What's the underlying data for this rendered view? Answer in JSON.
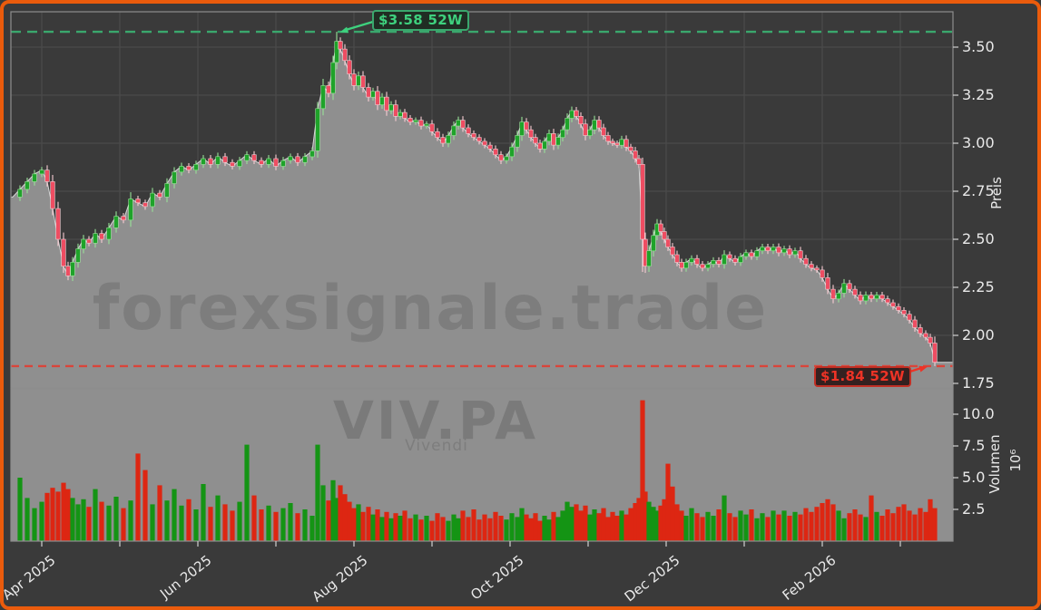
{
  "chart_data": {
    "type": "candlestick",
    "symbol": "VIV.PA",
    "company": "Vivendi",
    "watermark": "forexsignale.trade",
    "price_axis": {
      "label": "Preis",
      "ticks": [
        "1.75",
        "2.00",
        "2.25",
        "2.50",
        "2.75",
        "3.00",
        "3.25",
        "3.50"
      ]
    },
    "volume_axis": {
      "label": "Volumen",
      "scale": "10⁶",
      "ticks": [
        "2.5",
        "5.0",
        "7.5",
        "10.0"
      ]
    },
    "x_axis": {
      "labels": [
        "Apr 2025",
        "Jun 2025",
        "Aug 2025",
        "Oct 2025",
        "Dec 2025",
        "Feb 2026"
      ],
      "month_tick_count": 12,
      "labeled_every": 2
    },
    "annotations": {
      "high": {
        "label": "$3.58 52W",
        "value": 3.58
      },
      "low": {
        "label": "$1.84 52W",
        "value": 1.84
      }
    },
    "series": {
      "note": "candles = [x_px, close_eur, volume_millions, low_override?, high_override?]; open = previous close",
      "candles": [
        [
          14,
          2.72,
          2.9
        ],
        [
          22,
          2.76,
          5.0
        ],
        [
          30,
          2.8,
          3.4
        ],
        [
          38,
          2.84,
          2.6
        ],
        [
          46,
          2.86,
          3.1
        ],
        [
          52,
          2.8,
          3.8
        ],
        [
          58,
          2.66,
          4.2
        ],
        [
          64,
          2.5,
          3.9
        ],
        [
          70,
          2.36,
          4.6
        ],
        [
          75,
          2.31,
          4.1
        ],
        [
          80,
          2.38,
          3.4
        ],
        [
          86,
          2.45,
          2.9
        ],
        [
          92,
          2.5,
          3.3
        ],
        [
          98,
          2.48,
          2.7
        ],
        [
          105,
          2.53,
          4.1
        ],
        [
          112,
          2.5,
          3.1
        ],
        [
          120,
          2.56,
          2.8
        ],
        [
          128,
          2.62,
          3.5
        ],
        [
          136,
          2.6,
          2.6
        ],
        [
          144,
          2.71,
          3.2
        ],
        [
          152,
          2.69,
          6.9
        ],
        [
          160,
          2.67,
          5.6
        ],
        [
          168,
          2.74,
          2.9
        ],
        [
          176,
          2.72,
          4.4
        ],
        [
          184,
          2.79,
          3.2
        ],
        [
          192,
          2.85,
          4.1
        ],
        [
          200,
          2.88,
          2.8
        ],
        [
          208,
          2.86,
          3.3
        ],
        [
          216,
          2.89,
          2.5
        ],
        [
          224,
          2.92,
          4.5
        ],
        [
          232,
          2.89,
          2.7
        ],
        [
          240,
          2.93,
          3.6
        ],
        [
          248,
          2.9,
          2.9
        ],
        [
          256,
          2.88,
          2.4
        ],
        [
          264,
          2.91,
          3.1
        ],
        [
          272,
          2.94,
          7.6
        ],
        [
          280,
          2.91,
          3.6
        ],
        [
          288,
          2.89,
          2.5
        ],
        [
          296,
          2.92,
          2.8
        ],
        [
          304,
          2.88,
          2.3
        ],
        [
          312,
          2.91,
          2.6
        ],
        [
          320,
          2.93,
          3.0
        ],
        [
          328,
          2.9,
          2.2
        ],
        [
          336,
          2.93,
          2.5
        ],
        [
          344,
          2.96,
          2.0
        ],
        [
          350,
          3.18,
          7.6
        ],
        [
          356,
          3.3,
          4.4
        ],
        [
          362,
          3.26,
          3.2
        ],
        [
          367,
          3.42,
          4.8
        ],
        [
          371,
          3.53,
          3.4,
          null,
          3.58
        ],
        [
          375,
          3.49,
          4.4
        ],
        [
          380,
          3.43,
          3.7
        ],
        [
          385,
          3.36,
          3.1
        ],
        [
          390,
          3.3,
          2.6
        ],
        [
          395,
          3.35,
          2.9
        ],
        [
          400,
          3.29,
          2.3
        ],
        [
          406,
          3.24,
          2.7
        ],
        [
          411,
          3.27,
          2.1
        ],
        [
          416,
          3.2,
          2.5
        ],
        [
          421,
          3.24,
          1.9
        ],
        [
          426,
          3.17,
          2.3
        ],
        [
          431,
          3.2,
          1.8
        ],
        [
          436,
          3.14,
          2.2
        ],
        [
          441,
          3.16,
          2.0
        ],
        [
          446,
          3.13,
          2.4
        ],
        [
          452,
          3.11,
          1.8
        ],
        [
          458,
          3.12,
          2.1
        ],
        [
          464,
          3.09,
          1.7
        ],
        [
          470,
          3.1,
          2.0
        ],
        [
          476,
          3.06,
          1.6
        ],
        [
          482,
          3.03,
          2.2
        ],
        [
          488,
          3.0,
          1.9
        ],
        [
          494,
          3.04,
          1.6
        ],
        [
          500,
          3.09,
          2.1
        ],
        [
          505,
          3.12,
          1.8
        ],
        [
          510,
          3.08,
          2.4
        ],
        [
          516,
          3.05,
          1.9
        ],
        [
          522,
          3.03,
          2.5
        ],
        [
          528,
          3.01,
          1.7
        ],
        [
          534,
          2.99,
          2.1
        ],
        [
          540,
          2.97,
          1.8
        ],
        [
          546,
          2.94,
          2.3
        ],
        [
          552,
          2.91,
          2.0
        ],
        [
          558,
          2.93,
          1.7
        ],
        [
          564,
          2.98,
          2.2
        ],
        [
          570,
          3.04,
          1.9
        ],
        [
          575,
          3.11,
          2.6
        ],
        [
          580,
          3.07,
          2.1
        ],
        [
          585,
          3.03,
          1.8
        ],
        [
          590,
          3.0,
          2.2
        ],
        [
          595,
          2.97,
          1.6
        ],
        [
          600,
          3.01,
          2.0
        ],
        [
          605,
          3.05,
          1.7
        ],
        [
          610,
          2.99,
          2.3
        ],
        [
          615,
          3.03,
          1.9
        ],
        [
          620,
          3.07,
          2.4
        ],
        [
          625,
          3.13,
          3.1
        ],
        [
          630,
          3.17,
          2.7
        ],
        [
          635,
          3.14,
          2.9
        ],
        [
          640,
          3.1,
          2.4
        ],
        [
          645,
          3.04,
          2.8
        ],
        [
          650,
          3.07,
          2.1
        ],
        [
          655,
          3.12,
          2.5
        ],
        [
          660,
          3.08,
          2.2
        ],
        [
          665,
          3.04,
          2.6
        ],
        [
          670,
          3.01,
          1.9
        ],
        [
          675,
          3.0,
          2.3
        ],
        [
          680,
          2.99,
          2.0
        ],
        [
          685,
          3.02,
          2.4
        ],
        [
          690,
          2.98,
          2.1
        ],
        [
          695,
          2.96,
          2.6
        ],
        [
          700,
          2.92,
          3.0
        ],
        [
          704,
          2.89,
          3.4
        ],
        [
          708,
          2.5,
          11.1,
          2.33
        ],
        [
          711,
          2.36,
          3.9
        ],
        [
          715,
          2.44,
          3.1
        ],
        [
          720,
          2.52,
          2.7
        ],
        [
          724,
          2.58,
          2.4
        ],
        [
          728,
          2.54,
          2.8
        ],
        [
          732,
          2.5,
          3.3
        ],
        [
          736,
          2.46,
          6.1
        ],
        [
          741,
          2.42,
          4.3
        ],
        [
          746,
          2.38,
          2.9
        ],
        [
          751,
          2.35,
          2.4
        ],
        [
          756,
          2.38,
          2.0
        ],
        [
          762,
          2.4,
          2.6
        ],
        [
          768,
          2.37,
          2.2
        ],
        [
          774,
          2.35,
          1.9
        ],
        [
          780,
          2.37,
          2.3
        ],
        [
          786,
          2.39,
          2.0
        ],
        [
          792,
          2.37,
          2.5
        ],
        [
          798,
          2.42,
          3.6
        ],
        [
          804,
          2.4,
          2.2
        ],
        [
          810,
          2.38,
          1.9
        ],
        [
          816,
          2.41,
          2.4
        ],
        [
          822,
          2.43,
          2.1
        ],
        [
          828,
          2.41,
          2.5
        ],
        [
          834,
          2.44,
          1.8
        ],
        [
          840,
          2.46,
          2.2
        ],
        [
          846,
          2.44,
          1.9
        ],
        [
          852,
          2.46,
          2.4
        ],
        [
          858,
          2.43,
          2.1
        ],
        [
          864,
          2.45,
          2.4
        ],
        [
          870,
          2.42,
          2.0
        ],
        [
          876,
          2.44,
          2.3
        ],
        [
          882,
          2.4,
          2.1
        ],
        [
          888,
          2.37,
          2.6
        ],
        [
          894,
          2.35,
          2.3
        ],
        [
          900,
          2.34,
          2.7
        ],
        [
          906,
          2.3,
          3.0
        ],
        [
          912,
          2.24,
          3.3
        ],
        [
          918,
          2.19,
          2.9
        ],
        [
          924,
          2.22,
          2.4
        ],
        [
          930,
          2.27,
          1.8
        ],
        [
          936,
          2.24,
          2.2
        ],
        [
          942,
          2.21,
          2.5
        ],
        [
          948,
          2.18,
          2.1
        ],
        [
          954,
          2.21,
          1.9
        ],
        [
          960,
          2.19,
          3.6
        ],
        [
          966,
          2.21,
          2.3
        ],
        [
          972,
          2.19,
          2.0
        ],
        [
          978,
          2.17,
          2.5
        ],
        [
          984,
          2.15,
          2.2
        ],
        [
          990,
          2.13,
          2.7
        ],
        [
          996,
          2.11,
          2.9
        ],
        [
          1002,
          2.08,
          2.4
        ],
        [
          1008,
          2.04,
          2.1
        ],
        [
          1014,
          2.01,
          2.6
        ],
        [
          1020,
          1.99,
          2.3
        ],
        [
          1025,
          1.96,
          3.3
        ],
        [
          1030,
          1.86,
          2.6,
          1.84
        ]
      ]
    }
  },
  "colors": {
    "background": "#3a3a3a",
    "frame_border": "#ea5b0c",
    "panel_border": "#8d8d8d",
    "grid": "#4d4d4d",
    "area_fill": "#8f8f8f",
    "area_edge": "#d6d6d6",
    "candle_up": "#1fa32a",
    "candle_up_edge": "#97e297",
    "candle_down": "#ee4d62",
    "candle_down_edge": "#f8ccd2",
    "volume_up": "#149414",
    "volume_down": "#dd2612",
    "high_line": "#3aa76d",
    "high_text": "#3ed17e",
    "high_box_bg": "#202d23",
    "low_line": "#d9453a",
    "low_text": "#ee3326",
    "low_box_bg": "#342120",
    "tick_color": "#d0d0d0"
  }
}
